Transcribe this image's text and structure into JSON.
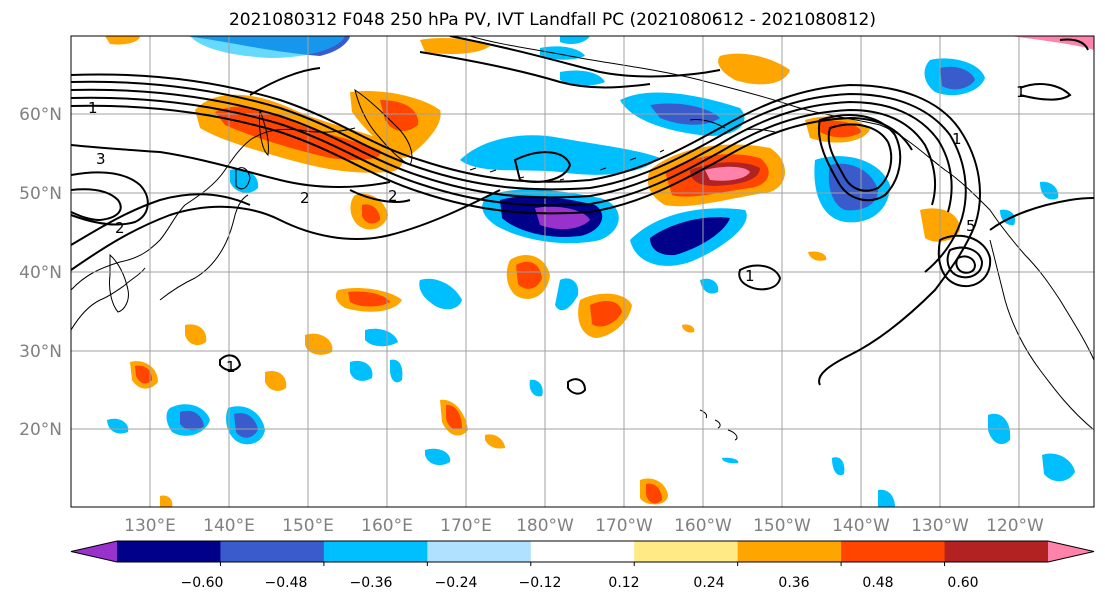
{
  "title": "2021080312 F048 250 hPa PV, IVT Landfall PC (2021080612 - 2021080812)",
  "map": {
    "lon_labels": [
      "130°E",
      "140°E",
      "150°E",
      "160°E",
      "170°E",
      "180°W",
      "170°W",
      "160°W",
      "150°W",
      "140°W",
      "130°W",
      "120°W"
    ],
    "lat_labels": [
      "60°N",
      "50°N",
      "40°N",
      "30°N",
      "20°N"
    ],
    "contour_labels": [
      "1",
      "3",
      "2",
      "2",
      "2",
      "1",
      "5",
      "1",
      "1",
      "1"
    ],
    "colors": {
      "land_outline": "#000000",
      "grid": "#a0a0a0",
      "contour": "#000000"
    }
  },
  "colorbar": {
    "colors": [
      "#9932cc",
      "#00008b",
      "#3a5bcc",
      "#00bfff",
      "#b0e2ff",
      "#ffffff",
      "#ffea85",
      "#ffa500",
      "#ff4500",
      "#b22222",
      "#ff82ab"
    ],
    "tick_labels": [
      "−0.60",
      "−0.48",
      "−0.36",
      "−0.24",
      "−0.12",
      "0.12",
      "0.24",
      "0.36",
      "0.48",
      "0.60"
    ]
  }
}
